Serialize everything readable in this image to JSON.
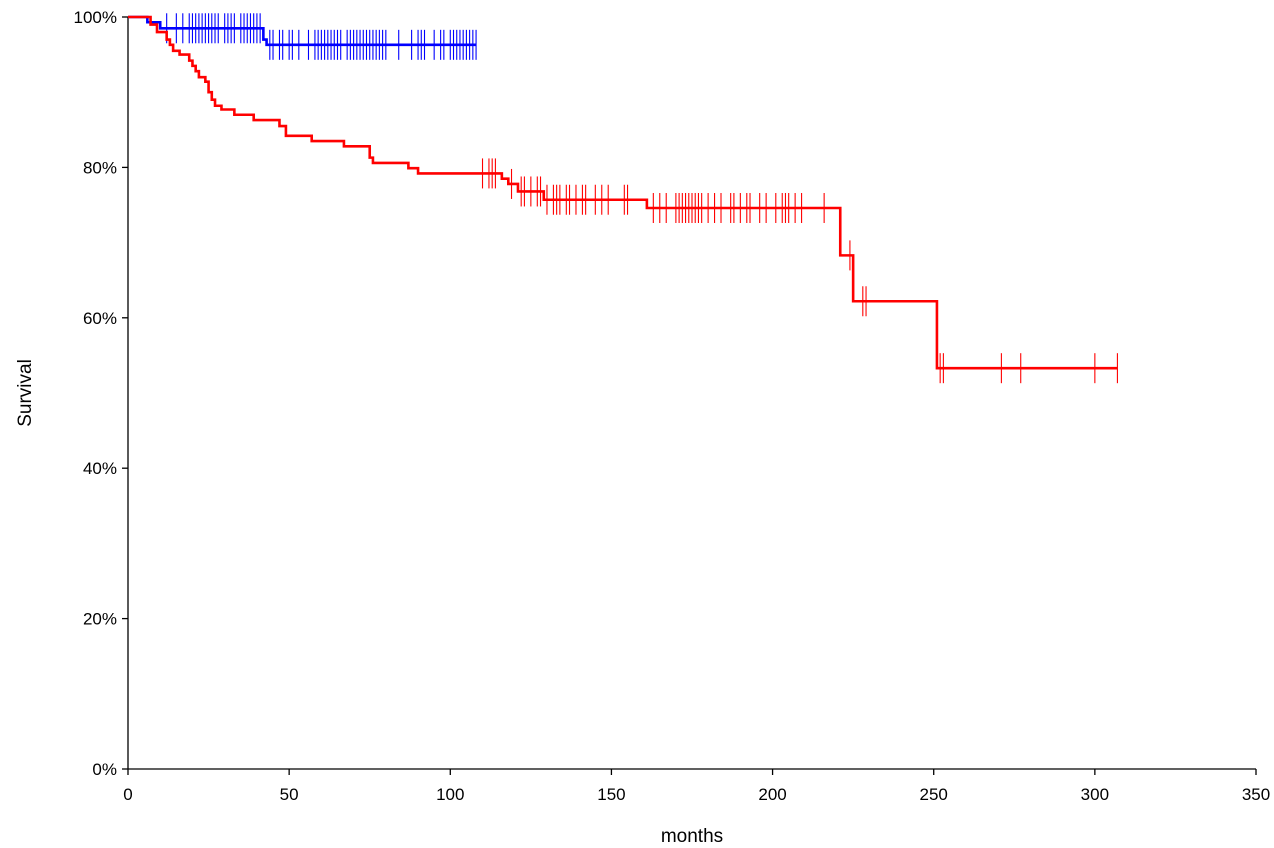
{
  "chart_data": {
    "type": "line",
    "subtype": "kaplan-meier",
    "title": "",
    "xlabel": "months",
    "ylabel": "Survival",
    "xlim": [
      0,
      350
    ],
    "ylim": [
      0,
      1
    ],
    "xticks": [
      0,
      50,
      100,
      150,
      200,
      250,
      300,
      350
    ],
    "xtick_labels": [
      "0",
      "50",
      "100",
      "150",
      "200",
      "250",
      "300",
      "350"
    ],
    "yticks": [
      0,
      0.2,
      0.4,
      0.6,
      0.8,
      1.0
    ],
    "ytick_labels": [
      "0%",
      "20%",
      "40%",
      "60%",
      "80%",
      "100%"
    ],
    "grid": false,
    "legend": "none",
    "series": [
      {
        "color": "#0000ff",
        "steps": [
          [
            0,
            1.0
          ],
          [
            6,
            0.993
          ],
          [
            10,
            0.985
          ],
          [
            42,
            0.97
          ],
          [
            43,
            0.963
          ],
          [
            108,
            0.963
          ]
        ],
        "censors": [
          12,
          15,
          17,
          19,
          20,
          21,
          22,
          23,
          24,
          25,
          26,
          27,
          28,
          30,
          31,
          32,
          33,
          35,
          36,
          37,
          38,
          39,
          40,
          41,
          44,
          45,
          47,
          48,
          50,
          51,
          53,
          56,
          58,
          59,
          60,
          61,
          62,
          63,
          64,
          65,
          66,
          68,
          69,
          70,
          71,
          72,
          73,
          74,
          75,
          76,
          77,
          78,
          79,
          80,
          84,
          88,
          90,
          91,
          92,
          95,
          97,
          98,
          100,
          101,
          102,
          103,
          104,
          105,
          106,
          107,
          108
        ]
      },
      {
        "color": "#ff0000",
        "steps": [
          [
            0,
            1.0
          ],
          [
            7,
            0.99
          ],
          [
            9,
            0.98
          ],
          [
            12,
            0.97
          ],
          [
            13,
            0.963
          ],
          [
            14,
            0.955
          ],
          [
            16,
            0.95
          ],
          [
            19,
            0.942
          ],
          [
            20,
            0.935
          ],
          [
            21,
            0.928
          ],
          [
            22,
            0.92
          ],
          [
            24,
            0.914
          ],
          [
            25,
            0.9
          ],
          [
            26,
            0.89
          ],
          [
            27,
            0.882
          ],
          [
            29,
            0.877
          ],
          [
            33,
            0.87
          ],
          [
            39,
            0.863
          ],
          [
            47,
            0.855
          ],
          [
            49,
            0.842
          ],
          [
            57,
            0.835
          ],
          [
            67,
            0.828
          ],
          [
            75,
            0.813
          ],
          [
            76,
            0.806
          ],
          [
            87,
            0.799
          ],
          [
            90,
            0.792
          ],
          [
            116,
            0.785
          ],
          [
            118,
            0.778
          ],
          [
            121,
            0.768
          ],
          [
            129,
            0.757
          ],
          [
            161,
            0.746
          ],
          [
            221,
            0.683
          ],
          [
            225,
            0.622
          ],
          [
            251,
            0.533
          ],
          [
            307,
            0.533
          ]
        ],
        "censors": [
          110,
          112,
          113,
          114,
          119,
          122,
          123,
          125,
          127,
          128,
          130,
          132,
          133,
          134,
          136,
          137,
          139,
          141,
          142,
          145,
          147,
          149,
          154,
          155,
          163,
          165,
          167,
          170,
          171,
          172,
          173,
          174,
          175,
          176,
          177,
          178,
          180,
          182,
          184,
          187,
          188,
          190,
          192,
          193,
          196,
          198,
          201,
          203,
          204,
          205,
          207,
          209,
          216,
          224,
          228,
          229,
          252,
          253,
          271,
          277,
          300,
          307
        ]
      }
    ]
  }
}
